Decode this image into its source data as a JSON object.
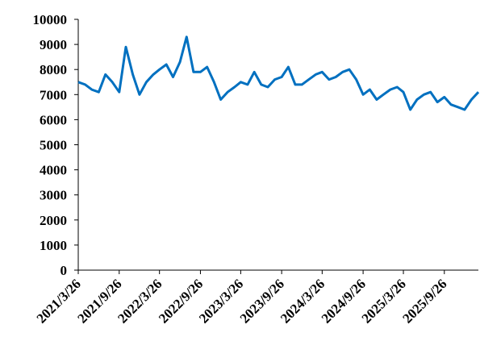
{
  "chart_data": {
    "type": "line",
    "x": [
      "2021/3/26",
      "2021/4/26",
      "2021/5/26",
      "2021/6/26",
      "2021/7/26",
      "2021/8/26",
      "2021/9/26",
      "2021/10/26",
      "2021/11/26",
      "2021/12/26",
      "2022/1/26",
      "2022/2/26",
      "2022/3/26",
      "2022/4/26",
      "2022/5/26",
      "2022/6/26",
      "2022/7/26",
      "2022/8/26",
      "2022/9/26",
      "2022/10/26",
      "2022/11/26",
      "2022/12/26",
      "2023/1/26",
      "2023/2/26",
      "2023/3/26",
      "2023/4/26",
      "2023/5/26",
      "2023/6/26",
      "2023/7/26",
      "2023/8/26",
      "2023/9/26",
      "2023/10/26",
      "2023/11/26",
      "2023/12/26",
      "2024/1/26",
      "2024/2/26",
      "2024/3/26",
      "2024/4/26",
      "2024/5/26",
      "2024/6/26",
      "2024/7/26",
      "2024/8/26",
      "2024/9/26",
      "2024/10/26",
      "2024/11/26",
      "2024/12/26",
      "2025/1/26",
      "2025/2/26",
      "2025/3/26",
      "2025/4/26",
      "2025/5/26",
      "2025/6/26",
      "2025/7/26",
      "2025/8/26",
      "2025/9/26",
      "2025/10/26",
      "2025/11/26",
      "2025/12/26",
      "2026/1/26",
      "2026/2/26"
    ],
    "series": [
      {
        "color": "#0070c0",
        "values": [
          7500,
          7400,
          7200,
          7100,
          7800,
          7500,
          7100,
          8900,
          7800,
          7000,
          7500,
          7800,
          8000,
          8200,
          7700,
          8300,
          9300,
          7900,
          7900,
          8100,
          7500,
          6800,
          7100,
          7300,
          7500,
          7400,
          7900,
          7400,
          7300,
          7600,
          7700,
          8100,
          7400,
          7400,
          7600,
          7800,
          7900,
          7600,
          7700,
          7900,
          8000,
          7600,
          7000,
          7200,
          6800,
          7000,
          7200,
          7300,
          7100,
          6400,
          6800,
          7000,
          7100,
          6700,
          6900,
          6600,
          6500,
          6400,
          6800,
          7100
        ]
      }
    ],
    "xlim": [
      "2021/3/26",
      "2026/2/26"
    ],
    "xticks": [
      "2021/3/26",
      "2021/9/26",
      "2022/3/26",
      "2022/9/26",
      "2023/3/26",
      "2023/9/26",
      "2024/3/26",
      "2024/9/26",
      "2025/3/26",
      "2025/9/26"
    ],
    "ylim": [
      0,
      10000
    ],
    "yticks": [
      0,
      1000,
      2000,
      3000,
      4000,
      5000,
      6000,
      7000,
      8000,
      9000,
      10000
    ]
  }
}
